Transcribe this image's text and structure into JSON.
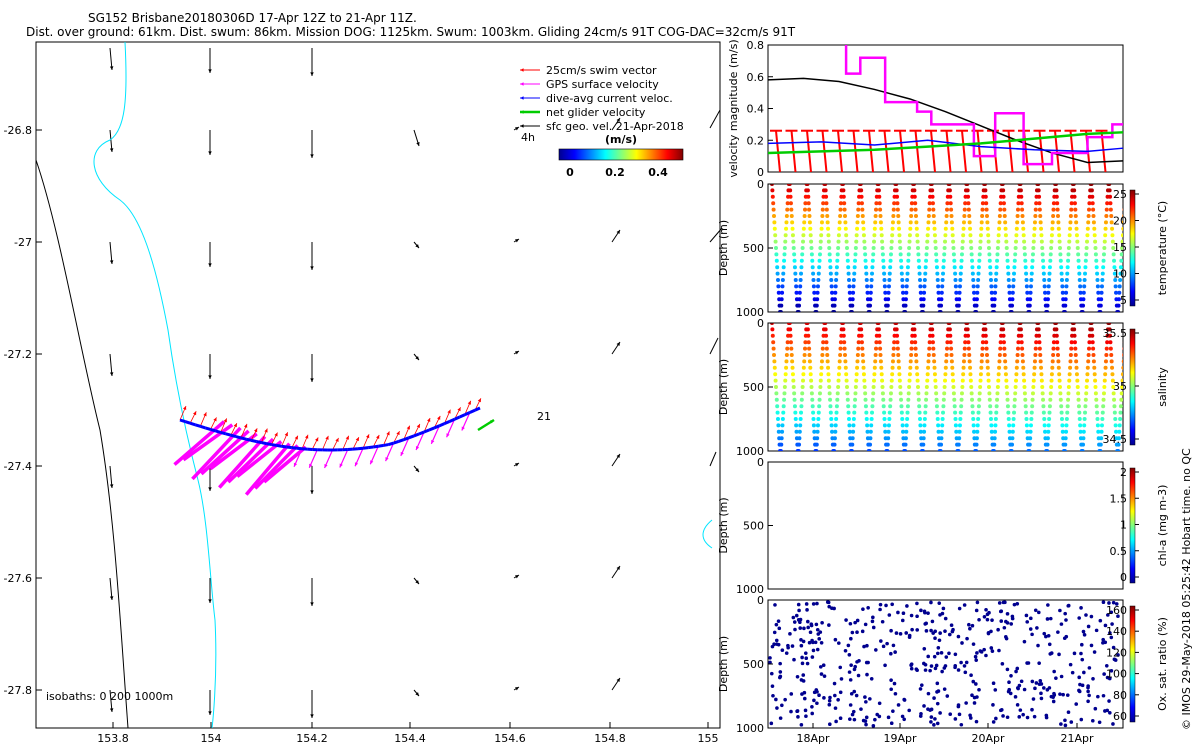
{
  "title": {
    "line1": "SG152 Brisbane20180306D 17-Apr 12Z to 21-Apr 11Z.",
    "line2": "Dist. over ground: 61km. Dist. swum: 86km. Mission DOG: 1125km. Swum: 1003km. Gliding 24cm/s 91T COG-DAC=32cm/s 91T"
  },
  "map": {
    "x_ticks": [
      "153.8",
      "154",
      "154.2",
      "154.4",
      "154.6",
      "154.8",
      "155"
    ],
    "y_ticks": [
      "-26.8",
      "-27",
      "-27.2",
      "-27.4",
      "-27.6",
      "-27.8"
    ],
    "isobath_note": "isobaths: 0   200  1000m",
    "label_4h": "4h",
    "label_21": "21",
    "legend": [
      {
        "label": "25cm/s swim vector",
        "color": "#ff0000"
      },
      {
        "label": "GPS surface velocity",
        "color": "#ff00ff"
      },
      {
        "label": "dive-avg current veloc.",
        "color": "#0000ff"
      },
      {
        "label": "net glider velocity",
        "color": "#00cc00"
      },
      {
        "label": "sfc geo. vel. 21-Apr-2018",
        "color": "#000000"
      }
    ],
    "colorbar": {
      "title": "(m/s)",
      "ticks": [
        "0",
        "0.2",
        "0.4"
      ]
    }
  },
  "chart_data": [
    {
      "type": "line",
      "ylabel": "velocity magnitude (m/s)",
      "ylim": [
        0,
        0.8
      ],
      "y_ticks": [
        "0",
        "0.2",
        "0.4",
        "0.6",
        "0.8"
      ],
      "series": [
        {
          "name": "geostrophic",
          "color": "#000000",
          "x": [
            0,
            0.1,
            0.2,
            0.3,
            0.4,
            0.5,
            0.6,
            0.7,
            0.8,
            0.9,
            1.0
          ],
          "values": [
            0.58,
            0.59,
            0.57,
            0.52,
            0.46,
            0.38,
            0.29,
            0.2,
            0.12,
            0.06,
            0.07
          ]
        },
        {
          "name": "GPS surface",
          "color": "#ff00ff",
          "x": [
            0.22,
            0.22,
            0.26,
            0.26,
            0.33,
            0.33,
            0.42,
            0.42,
            0.46,
            0.46,
            0.58,
            0.58,
            0.64,
            0.64,
            0.72,
            0.72,
            0.8,
            0.8,
            0.9,
            0.9,
            0.97,
            0.97,
            1.0
          ],
          "values": [
            0.8,
            0.62,
            0.62,
            0.72,
            0.72,
            0.44,
            0.44,
            0.38,
            0.38,
            0.3,
            0.3,
            0.1,
            0.1,
            0.37,
            0.37,
            0.05,
            0.05,
            0.12,
            0.12,
            0.22,
            0.22,
            0.3,
            0.3
          ]
        },
        {
          "name": "dive-avg current",
          "color": "#0000ff",
          "x": [
            0,
            0.15,
            0.3,
            0.45,
            0.6,
            0.75,
            0.9,
            1.0
          ],
          "values": [
            0.18,
            0.19,
            0.17,
            0.2,
            0.16,
            0.14,
            0.13,
            0.15
          ]
        },
        {
          "name": "net glider",
          "color": "#00cc00",
          "x": [
            0,
            0.15,
            0.3,
            0.45,
            0.6,
            0.75,
            0.9,
            1.0
          ],
          "values": [
            0.12,
            0.13,
            0.14,
            0.16,
            0.18,
            0.21,
            0.24,
            0.25
          ]
        },
        {
          "name": "swim vector",
          "color": "#ff0000",
          "values": [
            0.26
          ]
        }
      ]
    },
    {
      "type": "scatter",
      "ylabel": "Depth (m)",
      "clabel": "temperature (°C)",
      "y_ticks": [
        "0",
        "500",
        "1000"
      ],
      "c_ticks": [
        "25",
        "20",
        "15",
        "10",
        "5"
      ],
      "range": [
        5,
        28
      ]
    },
    {
      "type": "scatter",
      "ylabel": "Depth (m)",
      "clabel": "salinity",
      "y_ticks": [
        "0",
        "500",
        "1000"
      ],
      "c_ticks": [
        "35.5",
        "35",
        "34.5"
      ],
      "range": [
        34.3,
        35.9
      ]
    },
    {
      "type": "scatter",
      "ylabel": "Depth (m)",
      "clabel": "chl-a (mg m-3)",
      "y_ticks": [
        "0",
        "500",
        "1000"
      ],
      "c_ticks": [
        "2",
        "1.5",
        "1",
        "0.5",
        "0"
      ],
      "range": [
        0,
        2
      ]
    },
    {
      "type": "scatter",
      "ylabel": "Depth (m)",
      "clabel": "Ox. sat. ratio (%)",
      "y_ticks": [
        "0",
        "500",
        "1000"
      ],
      "c_ticks": [
        "160",
        "140",
        "120",
        "100",
        "80",
        "60"
      ],
      "range": [
        60,
        170
      ],
      "x_ticks": [
        "18Apr",
        "19Apr",
        "20Apr",
        "21Apr"
      ]
    }
  ],
  "side_credit": "© IMOS 29-May-2018 05:25:42 Hobart time. no QC"
}
